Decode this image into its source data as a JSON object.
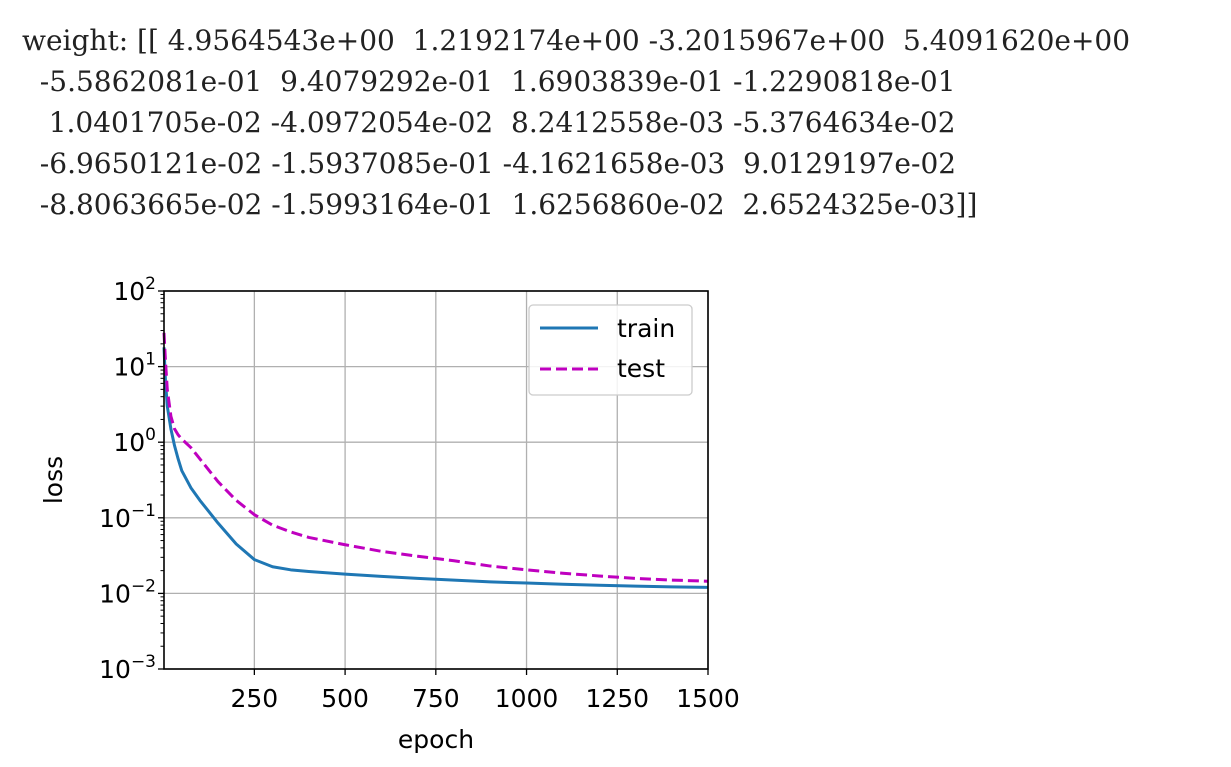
{
  "output_text": {
    "lines": [
      "weight: [[ 4.9564543e+00  1.2192174e+00 -3.2015967e+00  5.4091620e+00",
      "  -5.5862081e-01  9.4079292e-01  1.6903839e-01 -1.2290818e-01",
      "   1.0401705e-02 -4.0972054e-02  8.2412558e-03 -5.3764634e-02",
      "  -6.9650121e-02 -1.5937085e-01 -4.1621658e-03  9.0129197e-02",
      "  -8.8063665e-02 -1.5993164e-01  1.6256860e-02  2.6524325e-03]]"
    ]
  },
  "chart_data": {
    "type": "line",
    "xlabel": "epoch",
    "ylabel": "loss",
    "xlim": [
      1,
      1500
    ],
    "ylim": [
      0.001,
      100
    ],
    "yscale": "log",
    "grid": true,
    "legend_position": "top-right",
    "xticks": [
      250,
      500,
      750,
      1000,
      1250,
      1500
    ],
    "xtick_labels": [
      "250",
      "500",
      "750",
      "1000",
      "1250",
      "1500"
    ],
    "yticks": [
      {
        "value": 0.001,
        "base": "10",
        "exp": "−3"
      },
      {
        "value": 0.01,
        "base": "10",
        "exp": "−2"
      },
      {
        "value": 0.1,
        "base": "10",
        "exp": "−1"
      },
      {
        "value": 1,
        "base": "10",
        "exp": "0"
      },
      {
        "value": 10,
        "base": "10",
        "exp": "1"
      },
      {
        "value": 100,
        "base": "10",
        "exp": "2"
      }
    ],
    "series": [
      {
        "name": "train",
        "color": "#1f77b4",
        "dash": "solid",
        "x": [
          1,
          5,
          10,
          20,
          30,
          40,
          50,
          75,
          100,
          150,
          200,
          250,
          300,
          350,
          400,
          500,
          600,
          700,
          800,
          900,
          1000,
          1100,
          1200,
          1300,
          1400,
          1500
        ],
        "y": [
          18,
          6.5,
          3.0,
          1.5,
          0.9,
          0.6,
          0.42,
          0.25,
          0.17,
          0.085,
          0.045,
          0.028,
          0.0225,
          0.0205,
          0.0195,
          0.018,
          0.0168,
          0.0158,
          0.015,
          0.0142,
          0.0137,
          0.0132,
          0.0128,
          0.0125,
          0.0122,
          0.012
        ]
      },
      {
        "name": "test",
        "color": "#bf00bf",
        "dash": "dashed",
        "x": [
          1,
          5,
          10,
          20,
          30,
          40,
          50,
          75,
          100,
          150,
          200,
          250,
          300,
          350,
          400,
          500,
          600,
          700,
          800,
          900,
          1000,
          1100,
          1200,
          1300,
          1400,
          1500
        ],
        "y": [
          28,
          12,
          5.0,
          2.2,
          1.5,
          1.25,
          1.1,
          0.85,
          0.6,
          0.3,
          0.17,
          0.11,
          0.08,
          0.065,
          0.055,
          0.044,
          0.036,
          0.031,
          0.027,
          0.023,
          0.0205,
          0.0185,
          0.017,
          0.0158,
          0.015,
          0.0145
        ]
      }
    ]
  }
}
